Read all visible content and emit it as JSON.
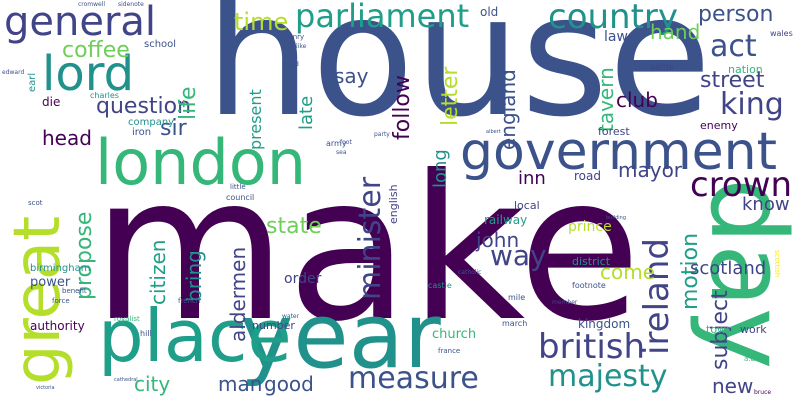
{
  "palette": {
    "deep_purple": "#440154",
    "indigo": "#3b528b",
    "slate_blue": "#414487",
    "teal": "#21918c",
    "sea_green": "#1f9e89",
    "green": "#35b779",
    "lime": "#6ece58",
    "yellow_green": "#b5de2b",
    "yellow": "#fde725"
  },
  "words": [
    "house",
    "make",
    "year",
    "day",
    "great",
    "place",
    "london",
    "government",
    "lord",
    "general",
    "parliament",
    "country",
    "crown",
    "british",
    "measure",
    "majesty",
    "minister",
    "king",
    "act",
    "ireland",
    "person",
    "time",
    "coffee",
    "question",
    "sir",
    "head",
    "life",
    "say",
    "follow",
    "letter",
    "england",
    "tavern",
    "street",
    "club",
    "hand",
    "mayor",
    "propose",
    "state",
    "citizen",
    "bring",
    "aldermen",
    "john",
    "way",
    "come",
    "motion",
    "subject",
    "scotland",
    "know",
    "inn",
    "long",
    "man",
    "good",
    "city",
    "new",
    "present",
    "late",
    "law",
    "old",
    "prince",
    "church",
    "kingdom",
    "order",
    "power",
    "authority",
    "birmingham",
    "railway",
    "local",
    "district",
    "road",
    "english",
    "forest",
    "enemy",
    "nation",
    "battle",
    "wales",
    "company",
    "iron",
    "charles",
    "edward",
    "die",
    "school",
    "army",
    "council",
    "town",
    "work",
    "number",
    "castle",
    "footnote",
    "mile",
    "member",
    "march",
    "france",
    "scottish",
    "a.d",
    "bruce",
    "henry",
    "stand",
    "like",
    "party",
    "albert",
    "cromwell",
    "sidenote",
    "foot",
    "sea",
    "earl",
    "royalist",
    "benefit",
    "force",
    "hill",
    "french",
    "little",
    "catholic",
    "building",
    "water",
    "scot",
    "victoria",
    "cathedral"
  ]
}
